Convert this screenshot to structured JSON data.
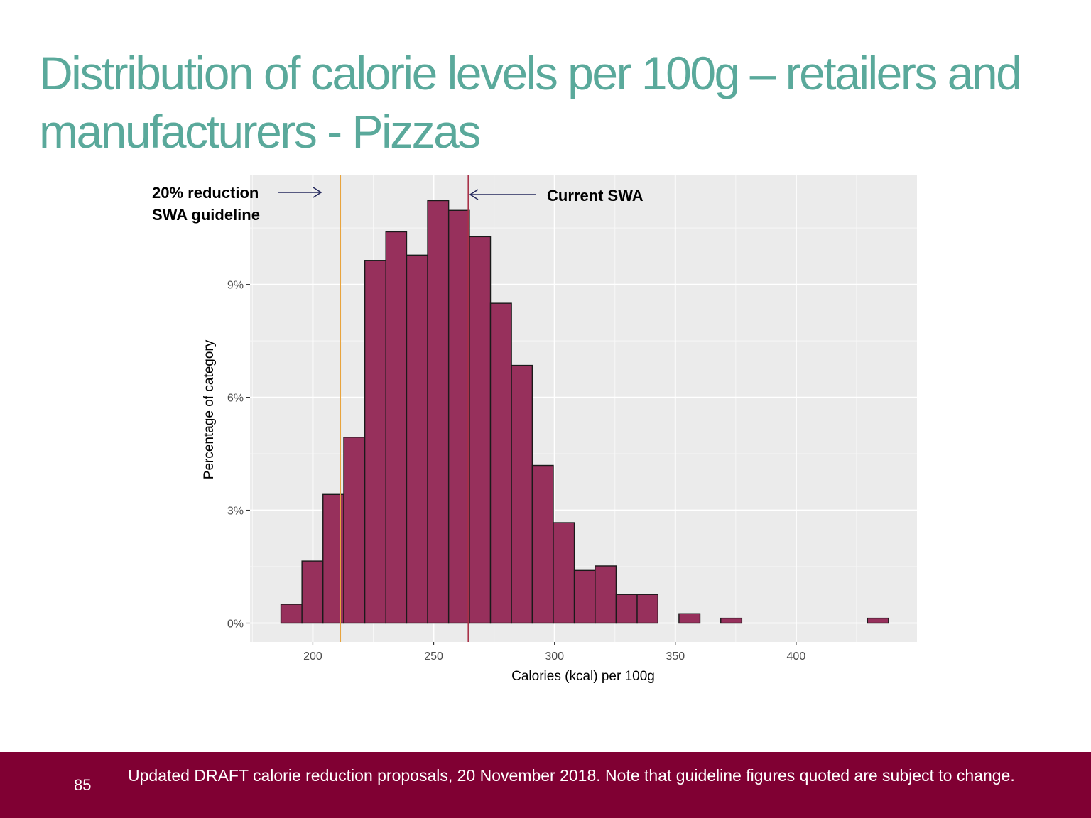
{
  "slide": {
    "title": "Distribution of calorie levels per 100g – retailers and manufacturers - Pizzas",
    "page_number": "85",
    "footer_note": "Updated DRAFT calorie reduction proposals, 20 November 2018. Note that guideline figures quoted are subject to change."
  },
  "colors": {
    "title": "#5aa99b",
    "footer_bg": "#800033",
    "bar_fill": "#97305c",
    "panel_bg": "#ebebeb",
    "reduction_line": "#e8a33d",
    "current_line": "#a83248",
    "arrow": "#262a5e"
  },
  "chart_data": {
    "type": "histogram",
    "xlabel": "Calories (kcal) per 100g",
    "ylabel": "Percentage of category",
    "xlim": [
      174,
      450
    ],
    "ylim": [
      -0.5,
      11.9
    ],
    "x_ticks": [
      200,
      250,
      300,
      350,
      400
    ],
    "y_ticks": [
      0,
      3,
      6,
      9
    ],
    "y_tick_labels": [
      "0%",
      "3%",
      "6%",
      "9%"
    ],
    "grid": true,
    "bins": [
      {
        "x0": 186.8,
        "x1": 195.5,
        "value": 0.5
      },
      {
        "x0": 195.5,
        "x1": 204.2,
        "value": 1.65
      },
      {
        "x0": 204.2,
        "x1": 212.8,
        "value": 3.42
      },
      {
        "x0": 212.8,
        "x1": 221.5,
        "value": 4.94
      },
      {
        "x0": 221.5,
        "x1": 230.2,
        "value": 9.64
      },
      {
        "x0": 230.2,
        "x1": 238.8,
        "value": 10.4
      },
      {
        "x0": 238.8,
        "x1": 247.5,
        "value": 9.78
      },
      {
        "x0": 247.5,
        "x1": 256.2,
        "value": 11.23
      },
      {
        "x0": 256.2,
        "x1": 264.8,
        "value": 10.97
      },
      {
        "x0": 264.8,
        "x1": 273.5,
        "value": 10.27
      },
      {
        "x0": 273.5,
        "x1": 282.2,
        "value": 8.5
      },
      {
        "x0": 282.2,
        "x1": 290.8,
        "value": 6.85
      },
      {
        "x0": 290.8,
        "x1": 299.5,
        "value": 4.19
      },
      {
        "x0": 299.5,
        "x1": 308.2,
        "value": 2.67
      },
      {
        "x0": 308.2,
        "x1": 316.8,
        "value": 1.4
      },
      {
        "x0": 316.8,
        "x1": 325.5,
        "value": 1.52
      },
      {
        "x0": 325.5,
        "x1": 334.2,
        "value": 0.76
      },
      {
        "x0": 334.2,
        "x1": 342.8,
        "value": 0.76
      },
      {
        "x0": 342.8,
        "x1": 351.5,
        "value": 0
      },
      {
        "x0": 351.5,
        "x1": 360.2,
        "value": 0.25
      },
      {
        "x0": 360.2,
        "x1": 368.8,
        "value": 0
      },
      {
        "x0": 368.8,
        "x1": 377.5,
        "value": 0.13
      },
      {
        "x0": 377.5,
        "x1": 386.2,
        "value": 0
      },
      {
        "x0": 386.2,
        "x1": 394.8,
        "value": 0
      },
      {
        "x0": 394.8,
        "x1": 403.5,
        "value": 0
      },
      {
        "x0": 403.5,
        "x1": 412.2,
        "value": 0
      },
      {
        "x0": 412.2,
        "x1": 420.8,
        "value": 0
      },
      {
        "x0": 420.8,
        "x1": 429.5,
        "value": 0
      },
      {
        "x0": 429.5,
        "x1": 438.2,
        "value": 0.13
      }
    ],
    "reference_lines": [
      {
        "name": "20% reduction SWA guideline",
        "x": 211.4,
        "label_lines": [
          "20% reduction",
          "SWA guideline"
        ],
        "color": "#e8a33d"
      },
      {
        "name": "Current SWA",
        "x": 264.3,
        "label_lines": [
          "Current SWA"
        ],
        "color": "#a83248"
      }
    ]
  }
}
